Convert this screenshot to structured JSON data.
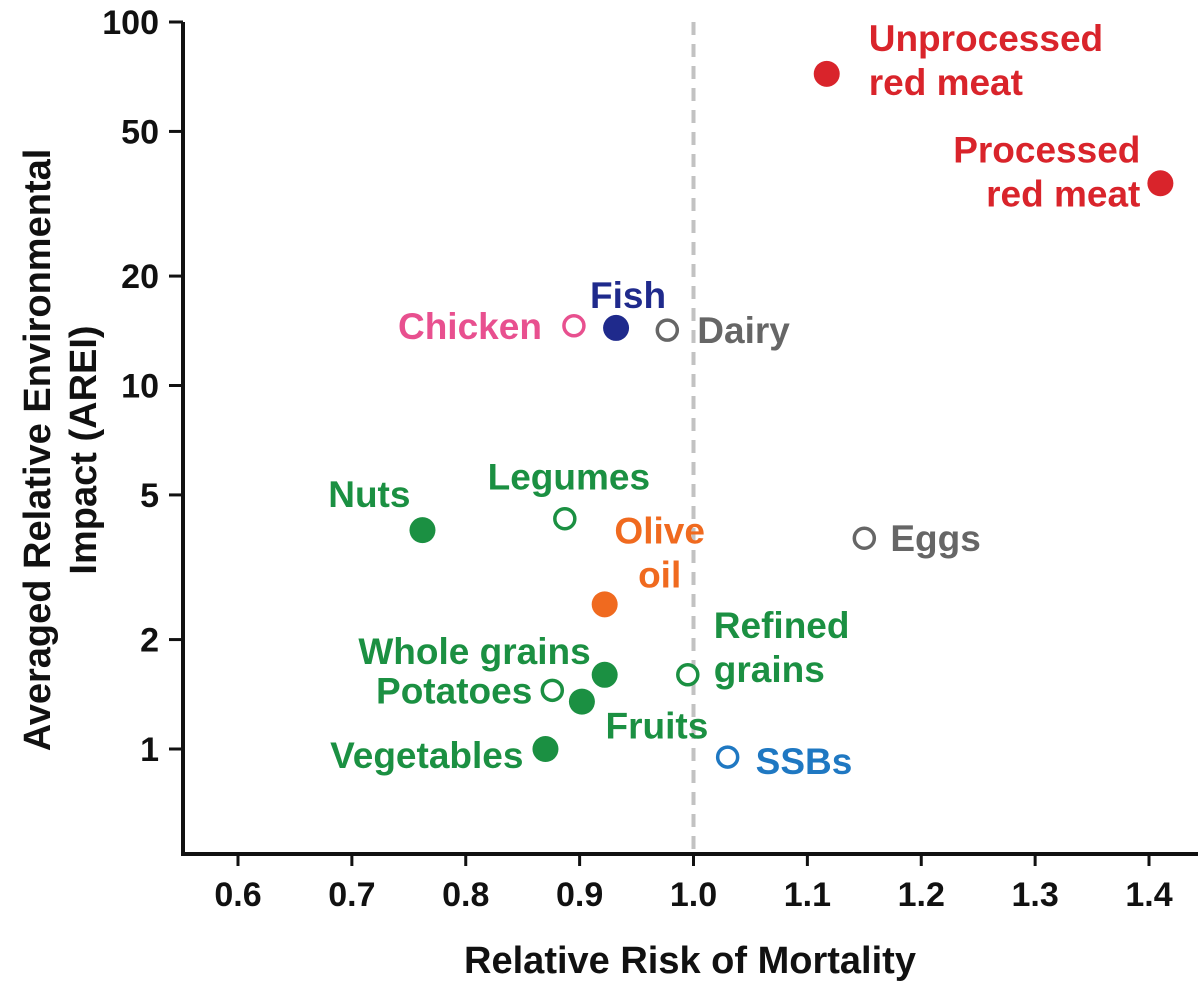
{
  "chart_data": {
    "type": "scatter",
    "title": "",
    "xlabel": "Relative Risk of Mortality",
    "ylabel_lines": [
      "Averaged Relative Environmental",
      "Impact (AREI)"
    ],
    "x_scale": "linear",
    "y_scale": "log",
    "xlim": [
      0.55,
      1.44
    ],
    "ylim": [
      0.5,
      100
    ],
    "x_ticks": [
      0.6,
      0.7,
      0.8,
      0.9,
      1.0,
      1.1,
      1.2,
      1.3,
      1.4
    ],
    "x_tick_labels": [
      "0.6",
      "0.7",
      "0.8",
      "0.9",
      "1.0",
      "1.1",
      "1.2",
      "1.3",
      "1.4"
    ],
    "y_ticks": [
      1,
      2,
      5,
      10,
      20,
      50,
      100
    ],
    "y_tick_labels": [
      "1",
      "2",
      "5",
      "10",
      "20",
      "50",
      "100"
    ],
    "reference_line": {
      "x": 1.0,
      "style": "dashed",
      "color": "#c2c2c2"
    },
    "grid": false,
    "points": [
      {
        "name": "unprocessed-red-meat",
        "label_lines": [
          "Unprocessed",
          "red meat"
        ],
        "x": 1.117,
        "y": 72,
        "color": "#d9242b",
        "filled": true,
        "label_dx": 42,
        "label_dy": -14,
        "anchor": "start"
      },
      {
        "name": "processed-red-meat",
        "label_lines": [
          "Processed",
          "red meat"
        ],
        "x": 1.41,
        "y": 36,
        "color": "#d9242b",
        "filled": true,
        "label_dx": -20,
        "label_dy": -12,
        "anchor": "end"
      },
      {
        "name": "fish",
        "label_lines": [
          "Fish"
        ],
        "x": 0.932,
        "y": 14.4,
        "color": "#1f2a8c",
        "filled": true,
        "label_dx": 12,
        "label_dy": -33,
        "anchor": "middle"
      },
      {
        "name": "chicken",
        "label_lines": [
          "Chicken"
        ],
        "x": 0.895,
        "y": 14.6,
        "color": "#e8508f",
        "filled": false,
        "label_dx": -32,
        "label_dy": 0,
        "anchor": "end"
      },
      {
        "name": "dairy",
        "label_lines": [
          "Dairy"
        ],
        "x": 0.977,
        "y": 14.2,
        "color": "#666666",
        "filled": false,
        "label_dx": 30,
        "label_dy": 0,
        "anchor": "start"
      },
      {
        "name": "nuts",
        "label_lines": [
          "Nuts"
        ],
        "x": 0.762,
        "y": 4.0,
        "color": "#1b9042",
        "filled": true,
        "label_dx": -12,
        "label_dy": -36,
        "anchor": "end"
      },
      {
        "name": "legumes",
        "label_lines": [
          "Legumes"
        ],
        "x": 0.887,
        "y": 4.3,
        "color": "#1b9042",
        "filled": false,
        "label_dx": 4,
        "label_dy": -42,
        "anchor": "middle"
      },
      {
        "name": "olive-oil",
        "label_lines": [
          "Olive",
          "oil"
        ],
        "x": 0.922,
        "y": 2.5,
        "color": "#f06a1f",
        "filled": true,
        "label_dx": 55,
        "label_dy": -52,
        "anchor": "middle"
      },
      {
        "name": "eggs",
        "label_lines": [
          "Eggs"
        ],
        "x": 1.15,
        "y": 3.8,
        "color": "#666666",
        "filled": false,
        "label_dx": 26,
        "label_dy": 0,
        "anchor": "start"
      },
      {
        "name": "whole-grains",
        "label_lines": [
          "Whole grains"
        ],
        "x": 0.922,
        "y": 1.6,
        "color": "#1b9042",
        "filled": true,
        "label_dx": -14,
        "label_dy": -24,
        "anchor": "end"
      },
      {
        "name": "refined-grains",
        "label_lines": [
          "Refined",
          "grains"
        ],
        "x": 0.995,
        "y": 1.6,
        "color": "#1b9042",
        "filled": false,
        "label_dx": 26,
        "label_dy": -28,
        "anchor": "start"
      },
      {
        "name": "potatoes",
        "label_lines": [
          "Potatoes"
        ],
        "x": 0.876,
        "y": 1.45,
        "color": "#1b9042",
        "filled": false,
        "label_dx": -20,
        "label_dy": 0,
        "anchor": "end"
      },
      {
        "name": "fruits",
        "label_lines": [
          "Fruits"
        ],
        "x": 0.902,
        "y": 1.35,
        "color": "#1b9042",
        "filled": true,
        "label_dx": 75,
        "label_dy": 24,
        "anchor": "middle"
      },
      {
        "name": "vegetables",
        "label_lines": [
          "Vegetables"
        ],
        "x": 0.87,
        "y": 1.0,
        "color": "#1b9042",
        "filled": true,
        "label_dx": -22,
        "label_dy": 6,
        "anchor": "end"
      },
      {
        "name": "ssbs",
        "label_lines": [
          "SSBs"
        ],
        "x": 1.03,
        "y": 0.95,
        "color": "#1f78c2",
        "filled": false,
        "label_dx": 28,
        "label_dy": 4,
        "anchor": "start"
      }
    ]
  }
}
